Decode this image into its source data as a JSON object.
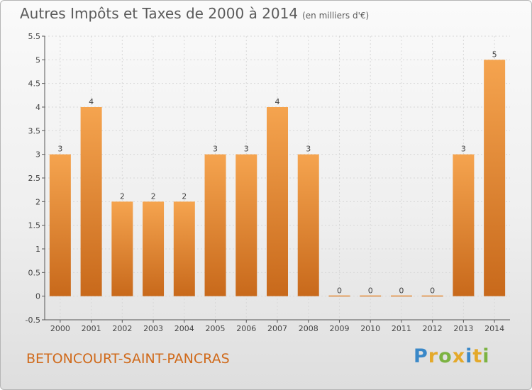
{
  "header": {
    "title": "Autres Impôts et Taxes de 2000 à 2014",
    "unit": "(en milliers d'€)"
  },
  "footer": {
    "city": "BETONCOURT-SAINT-PANCRAS",
    "logo": [
      "P",
      "r",
      "o",
      "x",
      "i",
      "t",
      "i"
    ]
  },
  "colors": {
    "bar_light": "#f5a44f",
    "bar_dark": "#c8691b",
    "axis": "#555555",
    "grid": "#d8d8d8",
    "logo": [
      "#3a88c8",
      "#e4a92a",
      "#7cb342",
      "#e4a92a",
      "#3a88c8",
      "#e4a92a",
      "#7cb342"
    ]
  },
  "chart_data": {
    "type": "bar",
    "title": "Autres Impôts et Taxes de 2000 à 2014",
    "subtitle": "(en milliers d'€)",
    "categories": [
      "2000",
      "2001",
      "2002",
      "2003",
      "2004",
      "2005",
      "2006",
      "2007",
      "2008",
      "2009",
      "2010",
      "2011",
      "2012",
      "2013",
      "2014"
    ],
    "values": [
      3,
      4,
      2,
      2,
      2,
      3,
      3,
      4,
      3,
      0,
      0,
      0,
      0,
      3,
      5
    ],
    "data_labels": [
      "3",
      "4",
      "2",
      "2",
      "2",
      "3",
      "3",
      "4",
      "3",
      "0",
      "0",
      "0",
      "0",
      "3",
      "5"
    ],
    "ylim": [
      -0.5,
      5.5
    ],
    "yticks": [
      5.5,
      5,
      4.5,
      4,
      3.5,
      3,
      2.5,
      2,
      1.5,
      1,
      0.5,
      0,
      -0.5
    ],
    "ytick_labels": [
      "5.5",
      "5",
      "4.5",
      "4",
      "3.5",
      "3",
      "2.5",
      "2",
      "1.5",
      "1",
      "0.5",
      "0",
      "-0.5"
    ],
    "grid": true,
    "legend": "none"
  }
}
